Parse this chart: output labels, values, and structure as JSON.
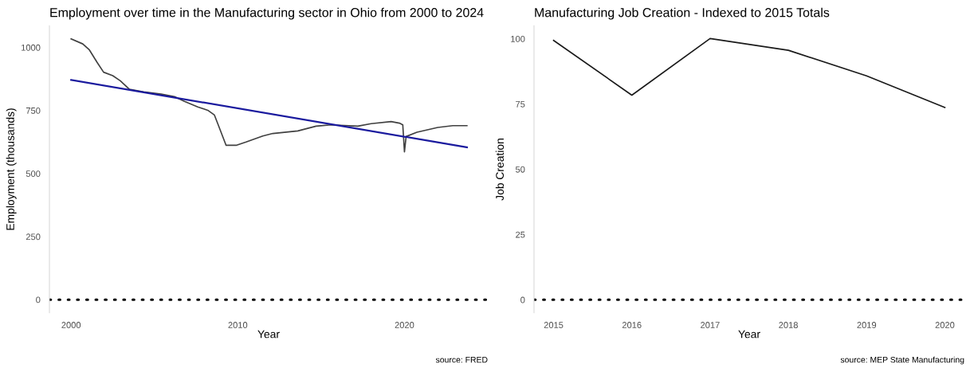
{
  "chart_data": [
    {
      "type": "line",
      "title": "Employment over time in the Manufacturing sector in Ohio from 2000 to 2024",
      "xlabel": "Year",
      "ylabel": "Employment (thousands)",
      "series": [
        {
          "color": "#404040",
          "x": [
            2000.0,
            2000.7,
            2001.1,
            2001.56,
            2001.95,
            2002.5,
            2002.95,
            2003.5,
            2004.35,
            2005.4,
            2006.2,
            2006.8,
            2007.6,
            2008.2,
            2008.6,
            2008.8,
            2009.3,
            2009.9,
            2010.5,
            2011.5,
            2012.1,
            2013.6,
            2014.7,
            2015.6,
            2017.2,
            2018.0,
            2019.2,
            2019.7,
            2019.9,
            2020.0,
            2020.1,
            2020.75,
            2022.0,
            2022.9,
            2023.75
          ],
          "values": [
            1034,
            1014,
            990,
            941,
            902,
            888,
            868,
            834,
            824,
            815,
            805,
            786,
            764,
            751,
            732,
            698,
            612,
            612,
            625,
            649,
            659,
            669,
            688,
            693,
            688,
            698,
            706,
            700,
            693,
            586,
            647,
            664,
            683,
            690,
            690
          ]
        },
        {
          "color": "#1a1a9e",
          "x": [
            2000.0,
            2023.75
          ],
          "values": [
            871,
            604
          ]
        }
      ],
      "xlim": [
        1998.7,
        2025.0
      ],
      "xticks": [
        2000,
        2010,
        2020
      ],
      "ylim": [
        -52,
        1086
      ],
      "yticks": [
        0,
        250,
        500,
        750,
        1000
      ],
      "ref_lines": [
        {
          "axis": "y",
          "value": 0,
          "color": "#000000",
          "line_style": "dotted"
        }
      ],
      "grid": false,
      "annotations": [
        "source: FRED"
      ]
    },
    {
      "type": "line",
      "title": "Manufacturing Job Creation - Indexed to 2015 Totals",
      "xlabel": "Year",
      "ylabel": "Job Creation",
      "series": [
        {
          "color": "#1a1a1a",
          "x": [
            2015,
            2016,
            2017,
            2018,
            2019,
            2020
          ],
          "values": [
            99.4,
            78.4,
            100.1,
            95.6,
            85.8,
            73.7
          ]
        }
      ],
      "xlim": [
        2014.75,
        2020.25
      ],
      "xticks": [
        2015,
        2016,
        2017,
        2018,
        2019,
        2020
      ],
      "ylim": [
        -5,
        105
      ],
      "yticks": [
        0,
        25,
        50,
        75,
        100
      ],
      "ref_lines": [
        {
          "axis": "y",
          "value": 0,
          "color": "#000000",
          "line_style": "dotted"
        }
      ],
      "grid": false,
      "annotations": [
        "source: MEP State Manufacturing"
      ]
    }
  ]
}
